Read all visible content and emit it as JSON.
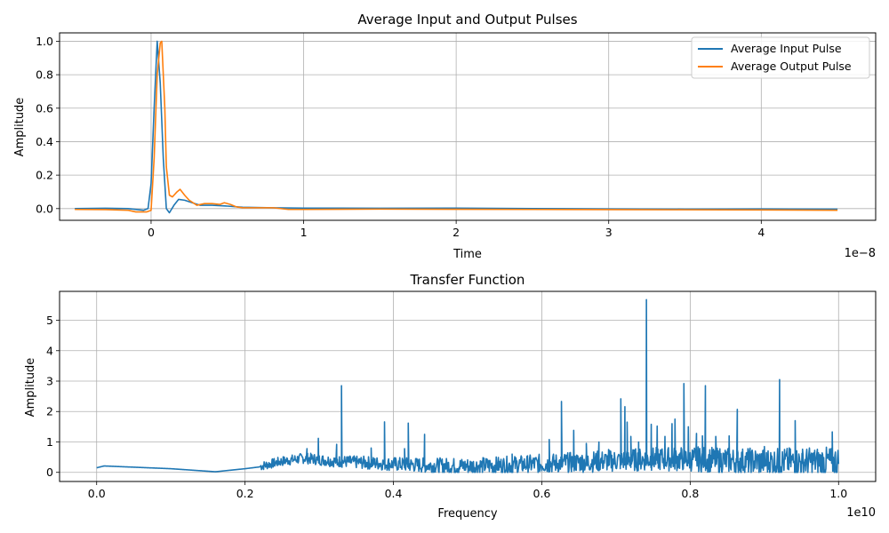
{
  "chart_data": [
    {
      "type": "line",
      "title": "Average Input and Output Pulses",
      "xlabel": "Time",
      "ylabel": "Amplitude",
      "x_offset_label": "1e−8",
      "xlim": [
        -6e-09,
        4.75e-08
      ],
      "ylim": [
        -0.07,
        1.05
      ],
      "x_ticks": [
        0,
        1e-08,
        2e-08,
        3e-08,
        4e-08
      ],
      "x_tick_labels": [
        "0",
        "1",
        "2",
        "3",
        "4"
      ],
      "y_ticks": [
        0.0,
        0.2,
        0.4,
        0.6,
        0.8,
        1.0
      ],
      "y_tick_labels": [
        "0.0",
        "0.2",
        "0.4",
        "0.6",
        "0.8",
        "1.0"
      ],
      "grid": true,
      "legend_position": "top-right",
      "series": [
        {
          "name": "Average Input Pulse",
          "color": "#1f77b4",
          "points": [
            [
              -5e-09,
              0.0
            ],
            [
              -3e-09,
              0.002
            ],
            [
              -1.5e-09,
              0.0
            ],
            [
              -5e-10,
              -0.01
            ],
            [
              -2e-10,
              0.0
            ],
            [
              0.0,
              0.15
            ],
            [
              2e-10,
              0.6
            ],
            [
              4e-10,
              1.0
            ],
            [
              6e-10,
              0.75
            ],
            [
              8e-10,
              0.3
            ],
            [
              1e-09,
              0.0
            ],
            [
              1.2e-09,
              -0.025
            ],
            [
              1.5e-09,
              0.02
            ],
            [
              1.8e-09,
              0.055
            ],
            [
              2.2e-09,
              0.05
            ],
            [
              2.7e-09,
              0.035
            ],
            [
              3.2e-09,
              0.02
            ],
            [
              4e-09,
              0.02
            ],
            [
              5e-09,
              0.015
            ],
            [
              6e-09,
              0.008
            ],
            [
              8e-09,
              0.005
            ],
            [
              1e-08,
              0.003
            ],
            [
              1.5e-08,
              0.002
            ],
            [
              2e-08,
              0.003
            ],
            [
              2.5e-08,
              0.0
            ],
            [
              3e-08,
              -0.002
            ],
            [
              3.5e-08,
              -0.003
            ],
            [
              4e-08,
              -0.002
            ],
            [
              4.5e-08,
              -0.003
            ]
          ]
        },
        {
          "name": "Average Output Pulse",
          "color": "#ff7f0e",
          "points": [
            [
              -5e-09,
              -0.005
            ],
            [
              -3e-09,
              -0.006
            ],
            [
              -1.5e-09,
              -0.01
            ],
            [
              -1e-09,
              -0.02
            ],
            [
              -3e-10,
              -0.02
            ],
            [
              0.0,
              -0.01
            ],
            [
              2e-10,
              0.3
            ],
            [
              4e-10,
              0.8
            ],
            [
              6e-10,
              0.99
            ],
            [
              7e-10,
              1.0
            ],
            [
              9e-10,
              0.6
            ],
            [
              1e-09,
              0.25
            ],
            [
              1.2e-09,
              0.08
            ],
            [
              1.4e-09,
              0.07
            ],
            [
              1.7e-09,
              0.1
            ],
            [
              1.9e-09,
              0.115
            ],
            [
              2.2e-09,
              0.08
            ],
            [
              2.5e-09,
              0.05
            ],
            [
              3e-09,
              0.02
            ],
            [
              3.5e-09,
              0.03
            ],
            [
              4e-09,
              0.03
            ],
            [
              4.5e-09,
              0.025
            ],
            [
              4.8e-09,
              0.035
            ],
            [
              5.2e-09,
              0.025
            ],
            [
              5.6e-09,
              0.01
            ],
            [
              6e-09,
              0.005
            ],
            [
              8e-09,
              0.005
            ],
            [
              9e-09,
              -0.005
            ],
            [
              1e-08,
              -0.005
            ],
            [
              1.5e-08,
              -0.003
            ],
            [
              2e-08,
              -0.004
            ],
            [
              2.5e-08,
              -0.005
            ],
            [
              3e-08,
              -0.006
            ],
            [
              3.5e-08,
              -0.007
            ],
            [
              4e-08,
              -0.008
            ],
            [
              4.5e-08,
              -0.01
            ]
          ]
        }
      ]
    },
    {
      "type": "line",
      "title": "Transfer Function",
      "xlabel": "Frequency",
      "ylabel": "Amplitude",
      "x_offset_label": "1e10",
      "xlim": [
        -500000000.0,
        10500000000.0
      ],
      "ylim": [
        -0.3,
        5.95
      ],
      "x_ticks": [
        0,
        2000000000.0,
        4000000000.0,
        6000000000.0,
        8000000000.0,
        10000000000.0
      ],
      "x_tick_labels": [
        "0.0",
        "0.2",
        "0.4",
        "0.6",
        "0.8",
        "1.0"
      ],
      "y_ticks": [
        0,
        1,
        2,
        3,
        4,
        5
      ],
      "y_tick_labels": [
        "0",
        "1",
        "2",
        "3",
        "4",
        "5"
      ],
      "grid": true,
      "series": [
        {
          "color": "#1f77b4",
          "baseline": [
            [
              0.0,
              0.15
            ],
            [
              100000000.0,
              0.21
            ],
            [
              1000000000.0,
              0.12
            ],
            [
              1600000000.0,
              0.02
            ],
            [
              2000000000.0,
              0.12
            ],
            [
              2200000000.0,
              0.18
            ],
            [
              2500000000.0,
              0.35
            ],
            [
              2800000000.0,
              0.45
            ],
            [
              3200000000.0,
              0.35
            ],
            [
              3600000000.0,
              0.3
            ],
            [
              4000000000.0,
              0.25
            ],
            [
              4500000000.0,
              0.2
            ],
            [
              5000000000.0,
              0.18
            ],
            [
              5500000000.0,
              0.2
            ],
            [
              6000000000.0,
              0.25
            ],
            [
              6500000000.0,
              0.3
            ],
            [
              7000000000.0,
              0.35
            ],
            [
              7500000000.0,
              0.4
            ],
            [
              8000000000.0,
              0.4
            ],
            [
              8500000000.0,
              0.35
            ],
            [
              9000000000.0,
              0.3
            ],
            [
              9500000000.0,
              0.3
            ],
            [
              10000000000.0,
              0.3
            ]
          ],
          "noise_start": 2200000000.0,
          "peaks": [
            [
              2835000000.0,
              0.78
            ],
            [
              2988000000.0,
              1.12
            ],
            [
              3235000000.0,
              0.92
            ],
            [
              3300000000.0,
              2.85
            ],
            [
              3700000000.0,
              0.8
            ],
            [
              3880000000.0,
              1.66
            ],
            [
              4150000000.0,
              0.78
            ],
            [
              4200000000.0,
              1.62
            ],
            [
              4420000000.0,
              1.25
            ],
            [
              5600000000.0,
              0.6
            ],
            [
              6100000000.0,
              1.08
            ],
            [
              6265000000.0,
              2.33
            ],
            [
              6430000000.0,
              1.38
            ],
            [
              6600000000.0,
              0.95
            ],
            [
              6770000000.0,
              1.0
            ],
            [
              6900000000.0,
              0.75
            ],
            [
              7065000000.0,
              2.42
            ],
            [
              7120000000.0,
              2.16
            ],
            [
              7150000000.0,
              1.65
            ],
            [
              7200000000.0,
              1.18
            ],
            [
              7305000000.0,
              1.0
            ],
            [
              7410000000.0,
              5.68
            ],
            [
              7475000000.0,
              1.58
            ],
            [
              7555000000.0,
              1.52
            ],
            [
              7660000000.0,
              1.18
            ],
            [
              7755000000.0,
              1.6
            ],
            [
              7795000000.0,
              1.75
            ],
            [
              7915000000.0,
              2.92
            ],
            [
              7975000000.0,
              1.5
            ],
            [
              8085000000.0,
              1.28
            ],
            [
              8165000000.0,
              1.2
            ],
            [
              8205000000.0,
              2.85
            ],
            [
              8345000000.0,
              1.18
            ],
            [
              8525000000.0,
              1.2
            ],
            [
              8635000000.0,
              2.07
            ],
            [
              9000000000.0,
              0.85
            ],
            [
              9205000000.0,
              3.05
            ],
            [
              9415000000.0,
              1.7
            ],
            [
              9520000000.0,
              0.6
            ],
            [
              9915000000.0,
              1.33
            ]
          ]
        }
      ]
    }
  ]
}
